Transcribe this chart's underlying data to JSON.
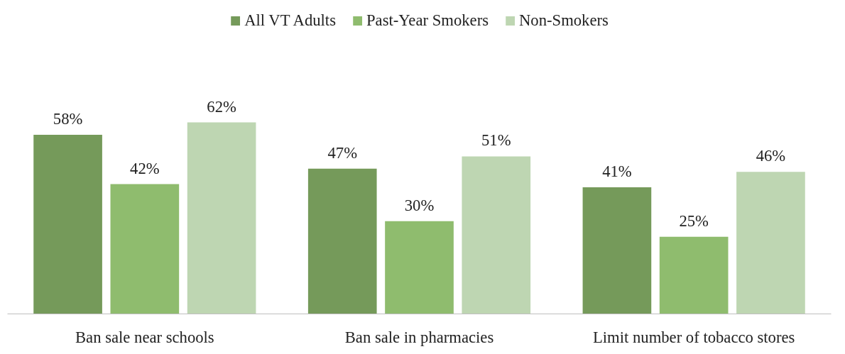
{
  "chart_data": {
    "type": "bar",
    "categories": [
      "Ban sale near schools",
      "Ban sale in pharmacies",
      "Limit number of tobacco stores"
    ],
    "series": [
      {
        "name": "All VT Adults",
        "color": "#759a5a",
        "values": [
          58,
          47,
          41
        ],
        "value_labels": [
          "58%",
          "47%",
          "41%"
        ]
      },
      {
        "name": "Past-Year Smokers",
        "color": "#8fbc6e",
        "values": [
          42,
          30,
          25
        ],
        "value_labels": [
          "42%",
          "30%",
          "25%"
        ]
      },
      {
        "name": "Non-Smokers",
        "color": "#bed6b2",
        "values": [
          62,
          51,
          46
        ],
        "value_labels": [
          "62%",
          "51%",
          "46%"
        ]
      }
    ],
    "legend": "top",
    "grid": false,
    "tick_labels": "x"
  }
}
